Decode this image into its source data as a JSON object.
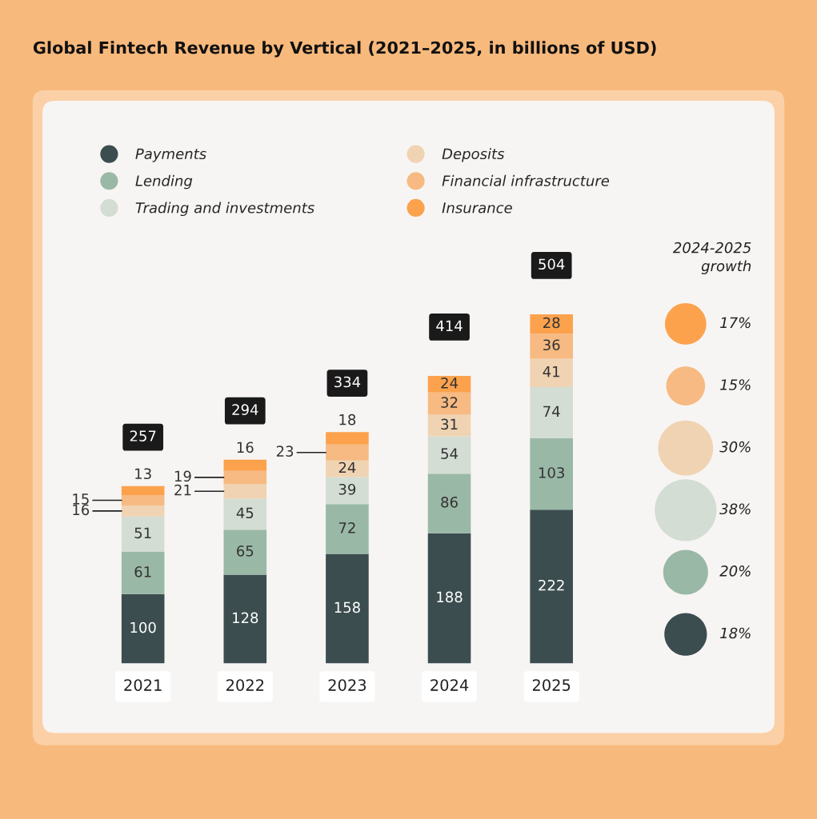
{
  "chart_data": [
    {
      "type": "bar",
      "title": "Global Fintech Revenue by Vertical (2021–2025, in billions of USD)",
      "stacked": true,
      "data_labels": true,
      "legend": "top left",
      "categories": [
        "2021",
        "2022",
        "2023",
        "2024",
        "2025"
      ],
      "series": [
        {
          "name": "Payments",
          "color": "#3b4d4f",
          "values": [
            100,
            128,
            158,
            188,
            222
          ]
        },
        {
          "name": "Lending",
          "color": "#9ab8a6",
          "values": [
            61,
            65,
            72,
            86,
            103
          ]
        },
        {
          "name": "Trading and investments",
          "color": "#d3ddd4",
          "values": [
            51,
            45,
            39,
            54,
            74
          ]
        },
        {
          "name": "Deposits",
          "color": "#f0d3b2",
          "values": [
            16,
            21,
            24,
            31,
            41
          ]
        },
        {
          "name": "Financial infrastructure",
          "color": "#f6ba82",
          "values": [
            15,
            19,
            23,
            32,
            36
          ]
        },
        {
          "name": "Insurance",
          "color": "#fca24d",
          "values": [
            13,
            16,
            18,
            24,
            28
          ]
        }
      ],
      "totals": [
        "257",
        "294",
        "334",
        "414",
        "504"
      ]
    },
    {
      "type": "other",
      "title": "2024-2025\ngrowth",
      "values": [
        17,
        15,
        30,
        38,
        20,
        18
      ],
      "colors": [
        "#fca24d",
        "#f6ba82",
        "#f0d3b2",
        "#d3ddd4",
        "#9ab8a6",
        "#3b4d4f"
      ],
      "value_labels": [
        "17%",
        "15%",
        "30%",
        "38%",
        "20%",
        "18%"
      ]
    }
  ]
}
